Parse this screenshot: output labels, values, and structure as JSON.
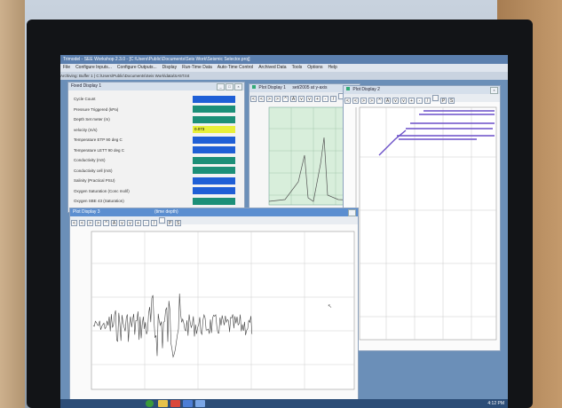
{
  "app": {
    "title": "Trimodel - SEE Workshop 2.3.0 - [C:\\Users\\Public\\Documents\\Seis Work\\Seismic Selector.proj]",
    "menu": [
      "File",
      "Configure Inputs...",
      "Configure Outputs...",
      "Display",
      "Run-Time Data",
      "Auto-Time Control",
      "Archived Data",
      "Tools",
      "Options",
      "Help"
    ],
    "status": "Archiving: Buffer 1 | C:\\Users\\Public\\Documents\\Seis Work\\data\\SA5T.tnt"
  },
  "fixed_display": {
    "title": "Fixed Display 1",
    "rows": [
      {
        "label": "Cycle Count",
        "color": "#1f5fd6"
      },
      {
        "label": "Pressure Triggered (kPa)",
        "color": "#1c8f78"
      },
      {
        "label": "Depth Set meter (m)",
        "color": "#1c8f78"
      },
      {
        "label": "velocity (m/s)",
        "color": "#e7ef3a",
        "value": "0.073"
      },
      {
        "label": "Temperature ETP 90 deg C",
        "color": "#1f5fd6"
      },
      {
        "label": "Temperature LETT 90 deg C",
        "color": "#1f5fd6"
      },
      {
        "label": "Conductivity (mS)",
        "color": "#1c8f78"
      },
      {
        "label": "Conductivity cell (mS)",
        "color": "#1c8f78"
      },
      {
        "label": "Salinity (Practical PSU)",
        "color": "#1f5fd6"
      },
      {
        "label": "Oxygen Saturation (Conc mol/l)",
        "color": "#1f5fd6"
      },
      {
        "label": "Oxygen SBE 43 (Saturation)",
        "color": "#1c8f78"
      }
    ]
  },
  "plot_small": {
    "title": "Plot Display 1",
    "subtitle": "set/2005 at y-axis"
  },
  "plot_right": {
    "title": "Plot Display 2"
  },
  "plot_main": {
    "title": "Plot Display 3",
    "subtitle": "(time depth)"
  },
  "toolbar": {
    "buttons": [
      "<",
      "<",
      ">",
      ">",
      "^",
      "A",
      "v",
      "v",
      "+",
      "-",
      "/",
      "",
      "P",
      "S"
    ]
  },
  "taskbar": {
    "clock": "4:12 PM"
  }
}
